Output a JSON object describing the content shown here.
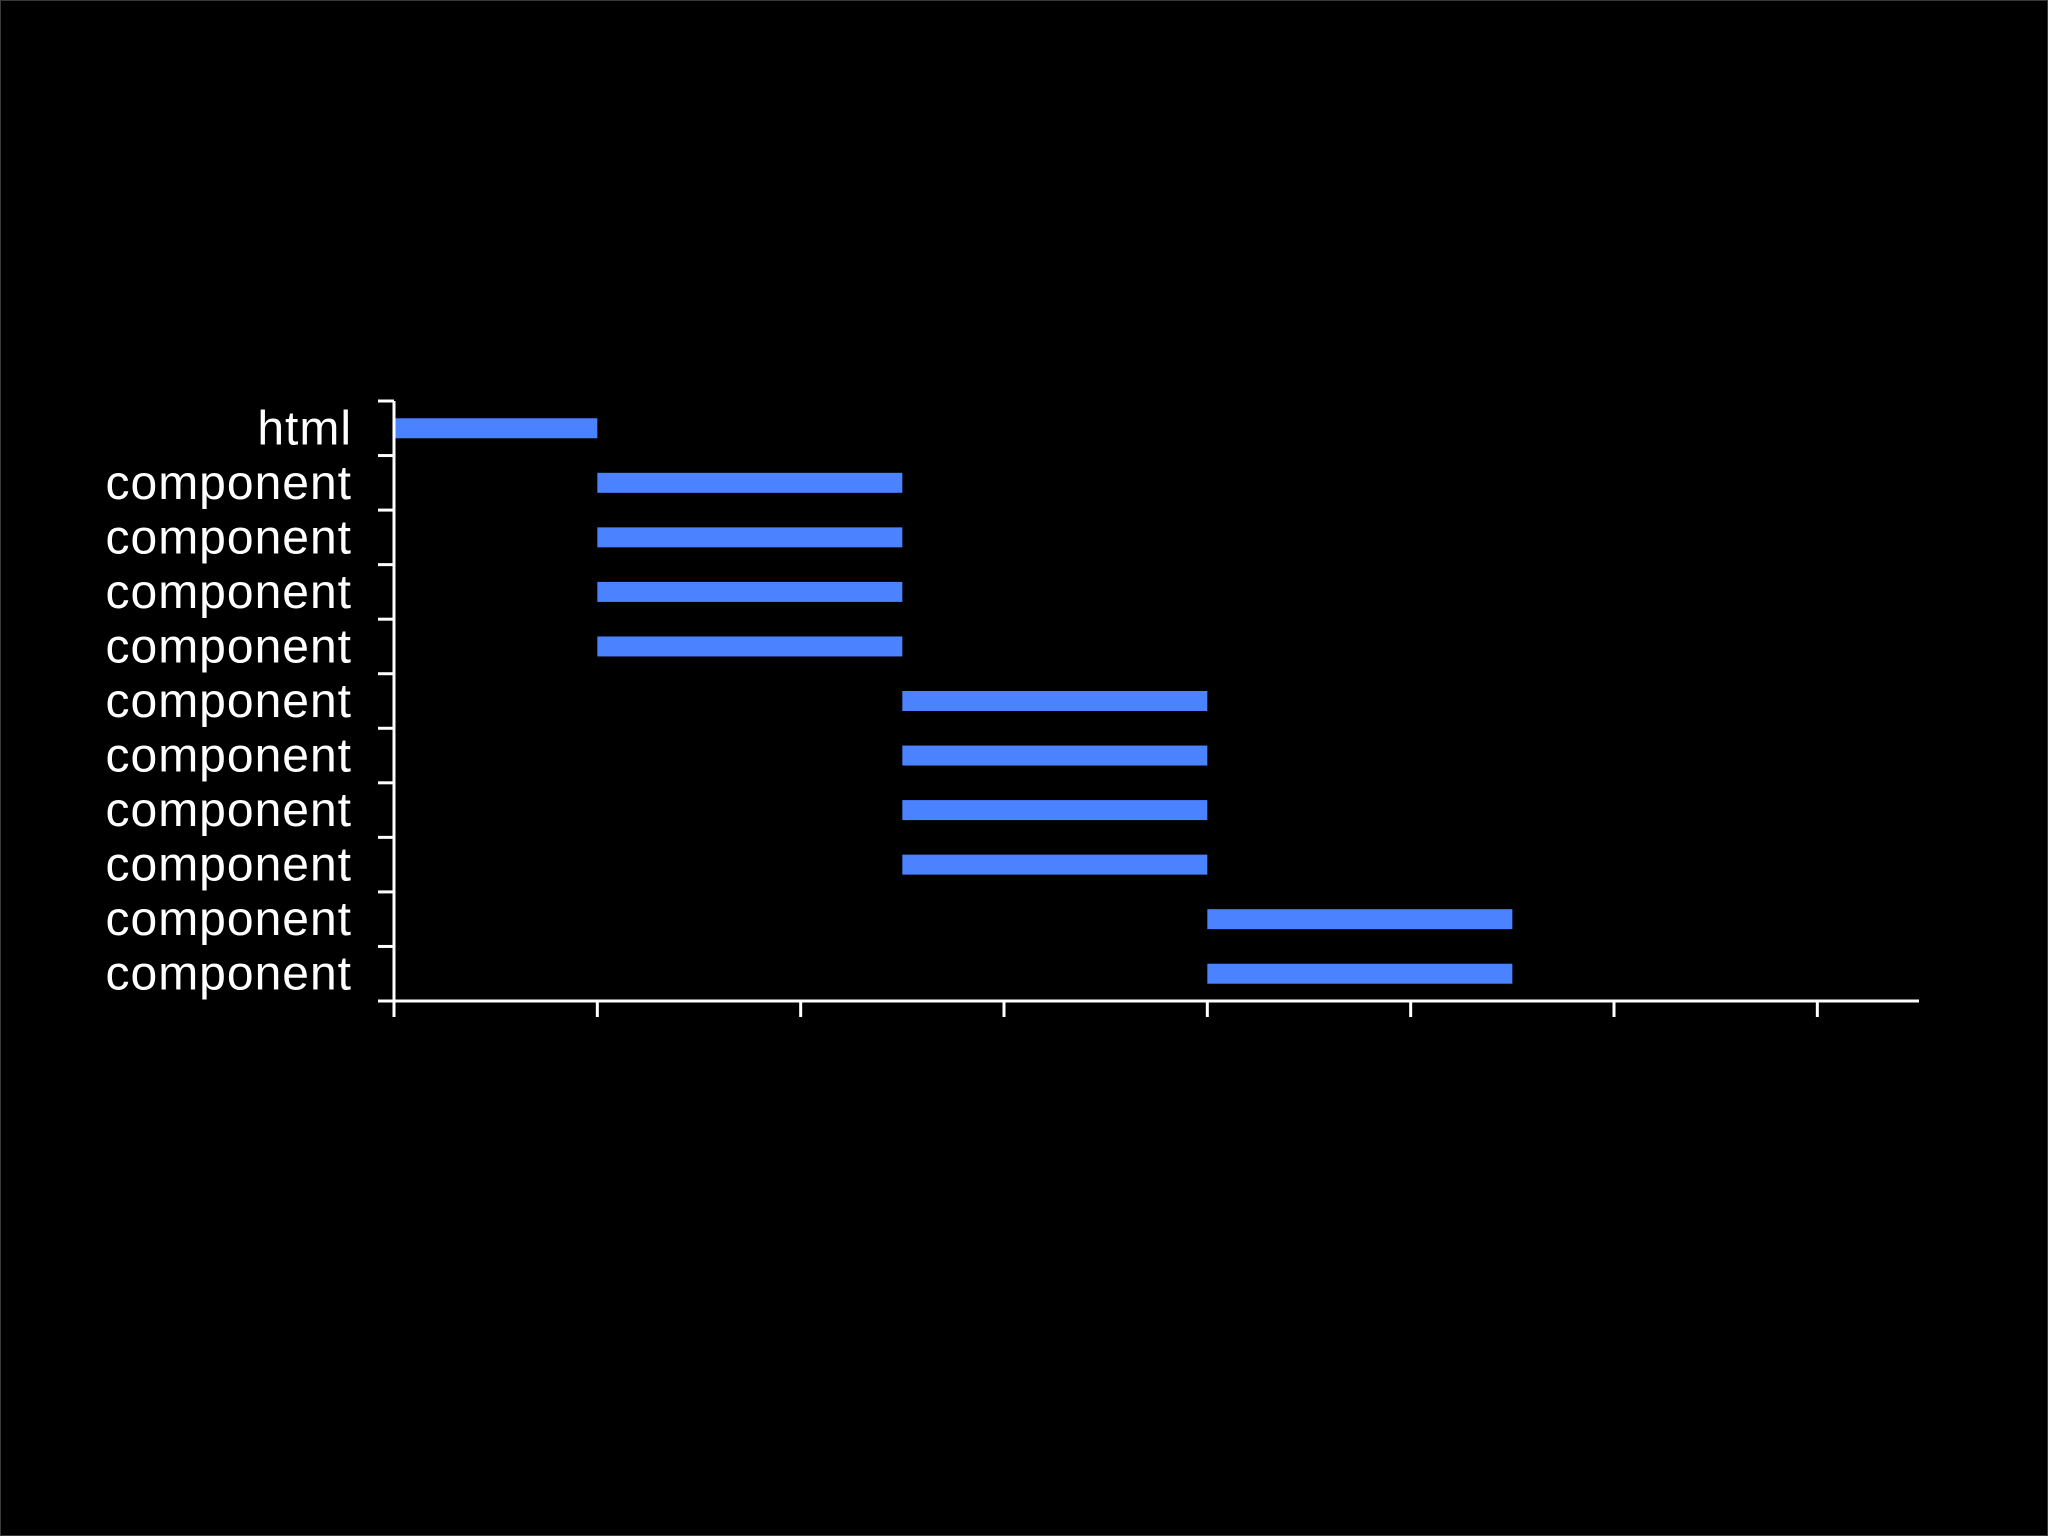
{
  "chart_data": {
    "type": "bar",
    "orientation": "horizontal-range",
    "categories": [
      "html",
      "component",
      "component",
      "component",
      "component",
      "component",
      "component",
      "component",
      "component",
      "component",
      "component"
    ],
    "series": [
      {
        "ranges": [
          [
            0,
            1
          ],
          [
            1,
            2.5
          ],
          [
            1,
            2.5
          ],
          [
            1,
            2.5
          ],
          [
            1,
            2.5
          ],
          [
            2.5,
            4
          ],
          [
            2.5,
            4
          ],
          [
            2.5,
            4
          ],
          [
            2.5,
            4
          ],
          [
            4,
            5.5
          ],
          [
            4,
            5.5
          ]
        ]
      }
    ],
    "xlim": [
      0,
      7.5
    ],
    "xticks": [
      0,
      1,
      2,
      3,
      4,
      5,
      6,
      7
    ],
    "xtick_labels_shown": false,
    "grid": false,
    "bar_color": "#4a82ff",
    "axis_color": "#ffffff",
    "background": "#000000"
  }
}
